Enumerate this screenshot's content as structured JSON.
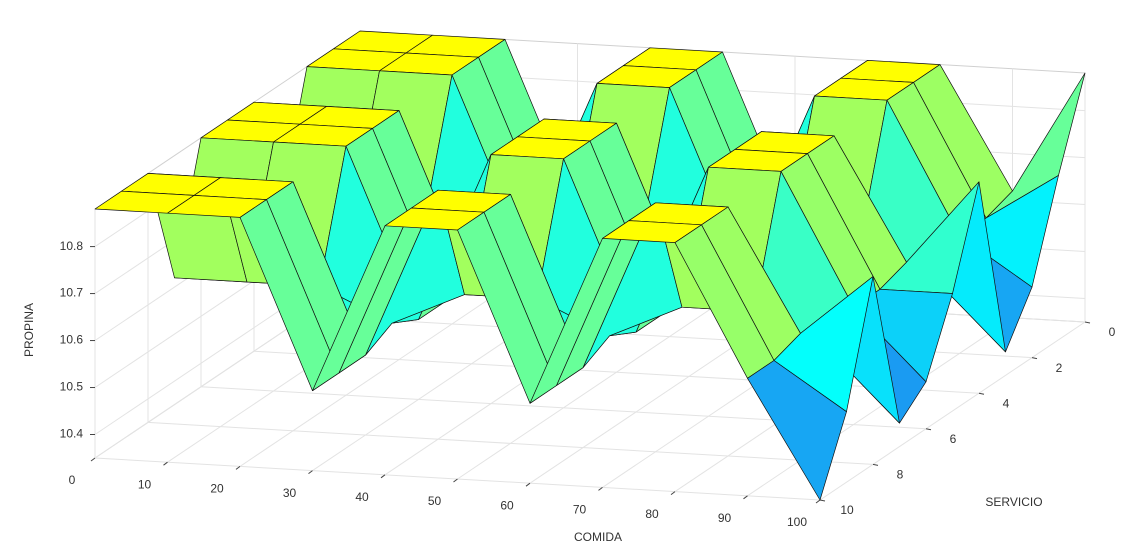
{
  "chart_data": {
    "type": "surface",
    "xlabel": "COMIDA",
    "ylabel": "SERVICIO",
    "zlabel": "PROPINA",
    "x": [
      0,
      10,
      20,
      30,
      40,
      50,
      60,
      70,
      80,
      90,
      100
    ],
    "y": [
      0,
      1,
      2,
      3,
      4,
      5,
      6,
      7,
      8,
      9,
      10
    ],
    "z": [
      [
        10.88,
        10.88,
        10.88,
        10.52,
        10.88,
        10.88,
        10.52,
        10.88,
        10.88,
        10.62,
        10.88
      ],
      [
        10.88,
        10.88,
        10.88,
        10.52,
        10.88,
        10.88,
        10.52,
        10.88,
        10.88,
        10.6,
        10.7
      ],
      [
        10.88,
        10.88,
        10.88,
        10.52,
        10.88,
        10.88,
        10.52,
        10.88,
        10.88,
        10.6,
        10.5
      ],
      [
        10.62,
        10.62,
        10.62,
        10.55,
        10.62,
        10.62,
        10.55,
        10.62,
        10.62,
        10.55,
        10.4
      ],
      [
        10.88,
        10.88,
        10.88,
        10.52,
        10.88,
        10.88,
        10.52,
        10.88,
        10.88,
        10.62,
        10.8
      ],
      [
        10.88,
        10.88,
        10.88,
        10.52,
        10.88,
        10.88,
        10.52,
        10.88,
        10.88,
        10.6,
        10.6
      ],
      [
        10.88,
        10.88,
        10.88,
        10.52,
        10.88,
        10.88,
        10.52,
        10.88,
        10.88,
        10.6,
        10.45
      ],
      [
        10.62,
        10.62,
        10.62,
        10.55,
        10.62,
        10.62,
        10.55,
        10.62,
        10.62,
        10.55,
        10.4
      ],
      [
        10.88,
        10.88,
        10.88,
        10.52,
        10.88,
        10.88,
        10.52,
        10.88,
        10.88,
        10.62,
        10.75
      ],
      [
        10.88,
        10.88,
        10.88,
        10.52,
        10.88,
        10.88,
        10.52,
        10.88,
        10.88,
        10.6,
        10.5
      ],
      [
        10.88,
        10.88,
        10.88,
        10.52,
        10.88,
        10.88,
        10.52,
        10.88,
        10.88,
        10.6,
        10.35
      ]
    ],
    "xlim": [
      0,
      100
    ],
    "ylim": [
      0,
      10
    ],
    "zlim": [
      10.35,
      10.88
    ],
    "xticks": [
      0,
      10,
      20,
      30,
      40,
      50,
      60,
      70,
      80,
      90,
      100
    ],
    "yticks": [
      0,
      2,
      4,
      6,
      8,
      10
    ],
    "zticks": [
      10.4,
      10.5,
      10.6,
      10.7,
      10.8
    ],
    "grid": true,
    "colormap": [
      "#1e50e6",
      "#1e8cf0",
      "#00ffff",
      "#a0ff60",
      "#ffff00"
    ]
  }
}
